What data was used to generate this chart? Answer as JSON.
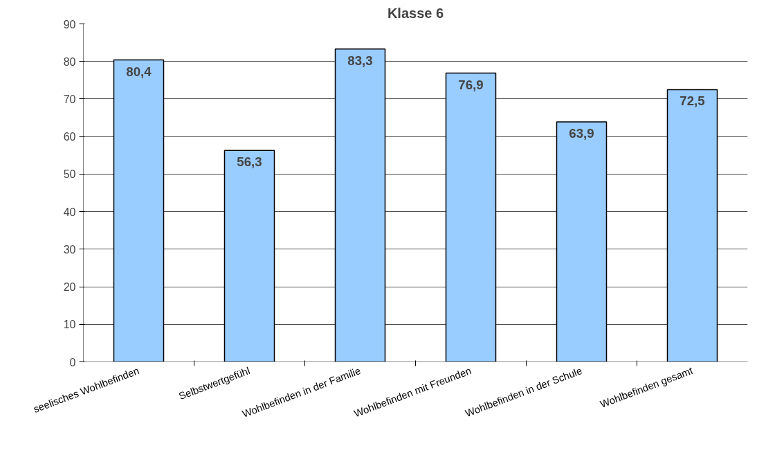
{
  "chart_data": {
    "type": "bar",
    "title": "Klasse 6",
    "categories": [
      "seelisches Wohlbefinden",
      "Selbstwertgefühl",
      "Wohlbefinden in der Familie",
      "Wohlbefinden mit Freunden",
      "Wohlbefinden in der Schule",
      "Wohlbefinden gesamt"
    ],
    "values": [
      80.4,
      56.3,
      83.3,
      76.9,
      63.9,
      72.5
    ],
    "value_labels": [
      "80,4",
      "56,3",
      "83,3",
      "76,9",
      "63,9",
      "72,5"
    ],
    "color": "#99ccff",
    "ylim": [
      0,
      90
    ],
    "yticks": [
      0,
      10,
      20,
      30,
      40,
      50,
      60,
      70,
      80,
      90
    ],
    "grid": "y"
  }
}
